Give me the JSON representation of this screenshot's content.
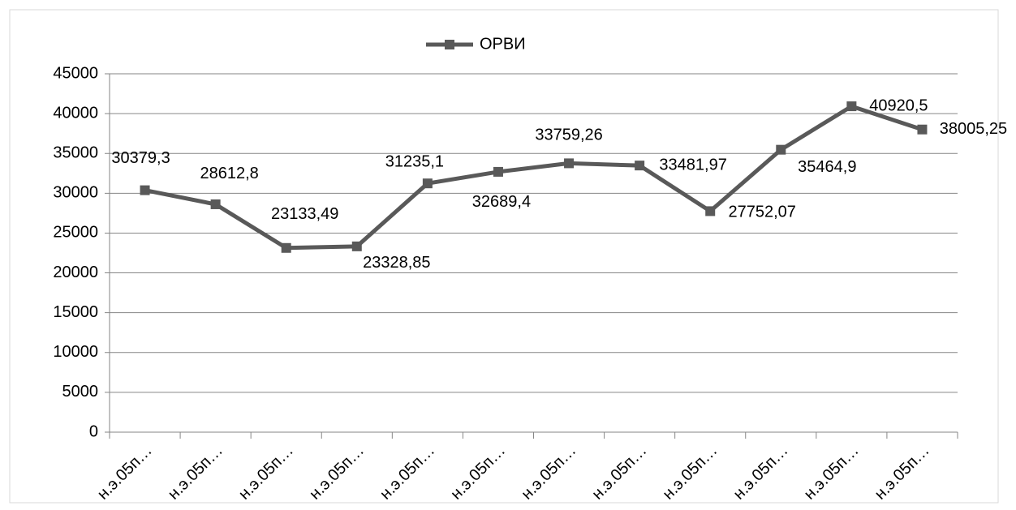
{
  "chart_data": {
    "type": "line",
    "categories": [
      "н.э.05п…",
      "н.э.05п…",
      "н.э.05п…",
      "н.э.05п…",
      "н.э.05п…",
      "н.э.05п…",
      "н.э.05п…",
      "н.э.05п…",
      "н.э.05п…",
      "н.э.05п…",
      "н.э.05п…",
      "н.э.05п…"
    ],
    "series": [
      {
        "name": "ОРВИ",
        "color": "#595959",
        "values": [
          30379.3,
          28612.8,
          23133.49,
          23328.85,
          31235.1,
          32689.4,
          33759.26,
          33481.97,
          27752.07,
          35464.9,
          40920.5,
          38005.25
        ],
        "value_labels": [
          "30379,3",
          "28612,8",
          "23133,49",
          "23328,85",
          "31235,1",
          "32689,4",
          "33759,26",
          "33481,97",
          "27752,07",
          "35464,9",
          "40920,5",
          "38005,25"
        ]
      }
    ],
    "ylim": [
      0,
      45000
    ],
    "yticks": [
      0,
      5000,
      10000,
      15000,
      20000,
      25000,
      30000,
      35000,
      40000,
      45000
    ],
    "grid": true,
    "legend": "top"
  }
}
